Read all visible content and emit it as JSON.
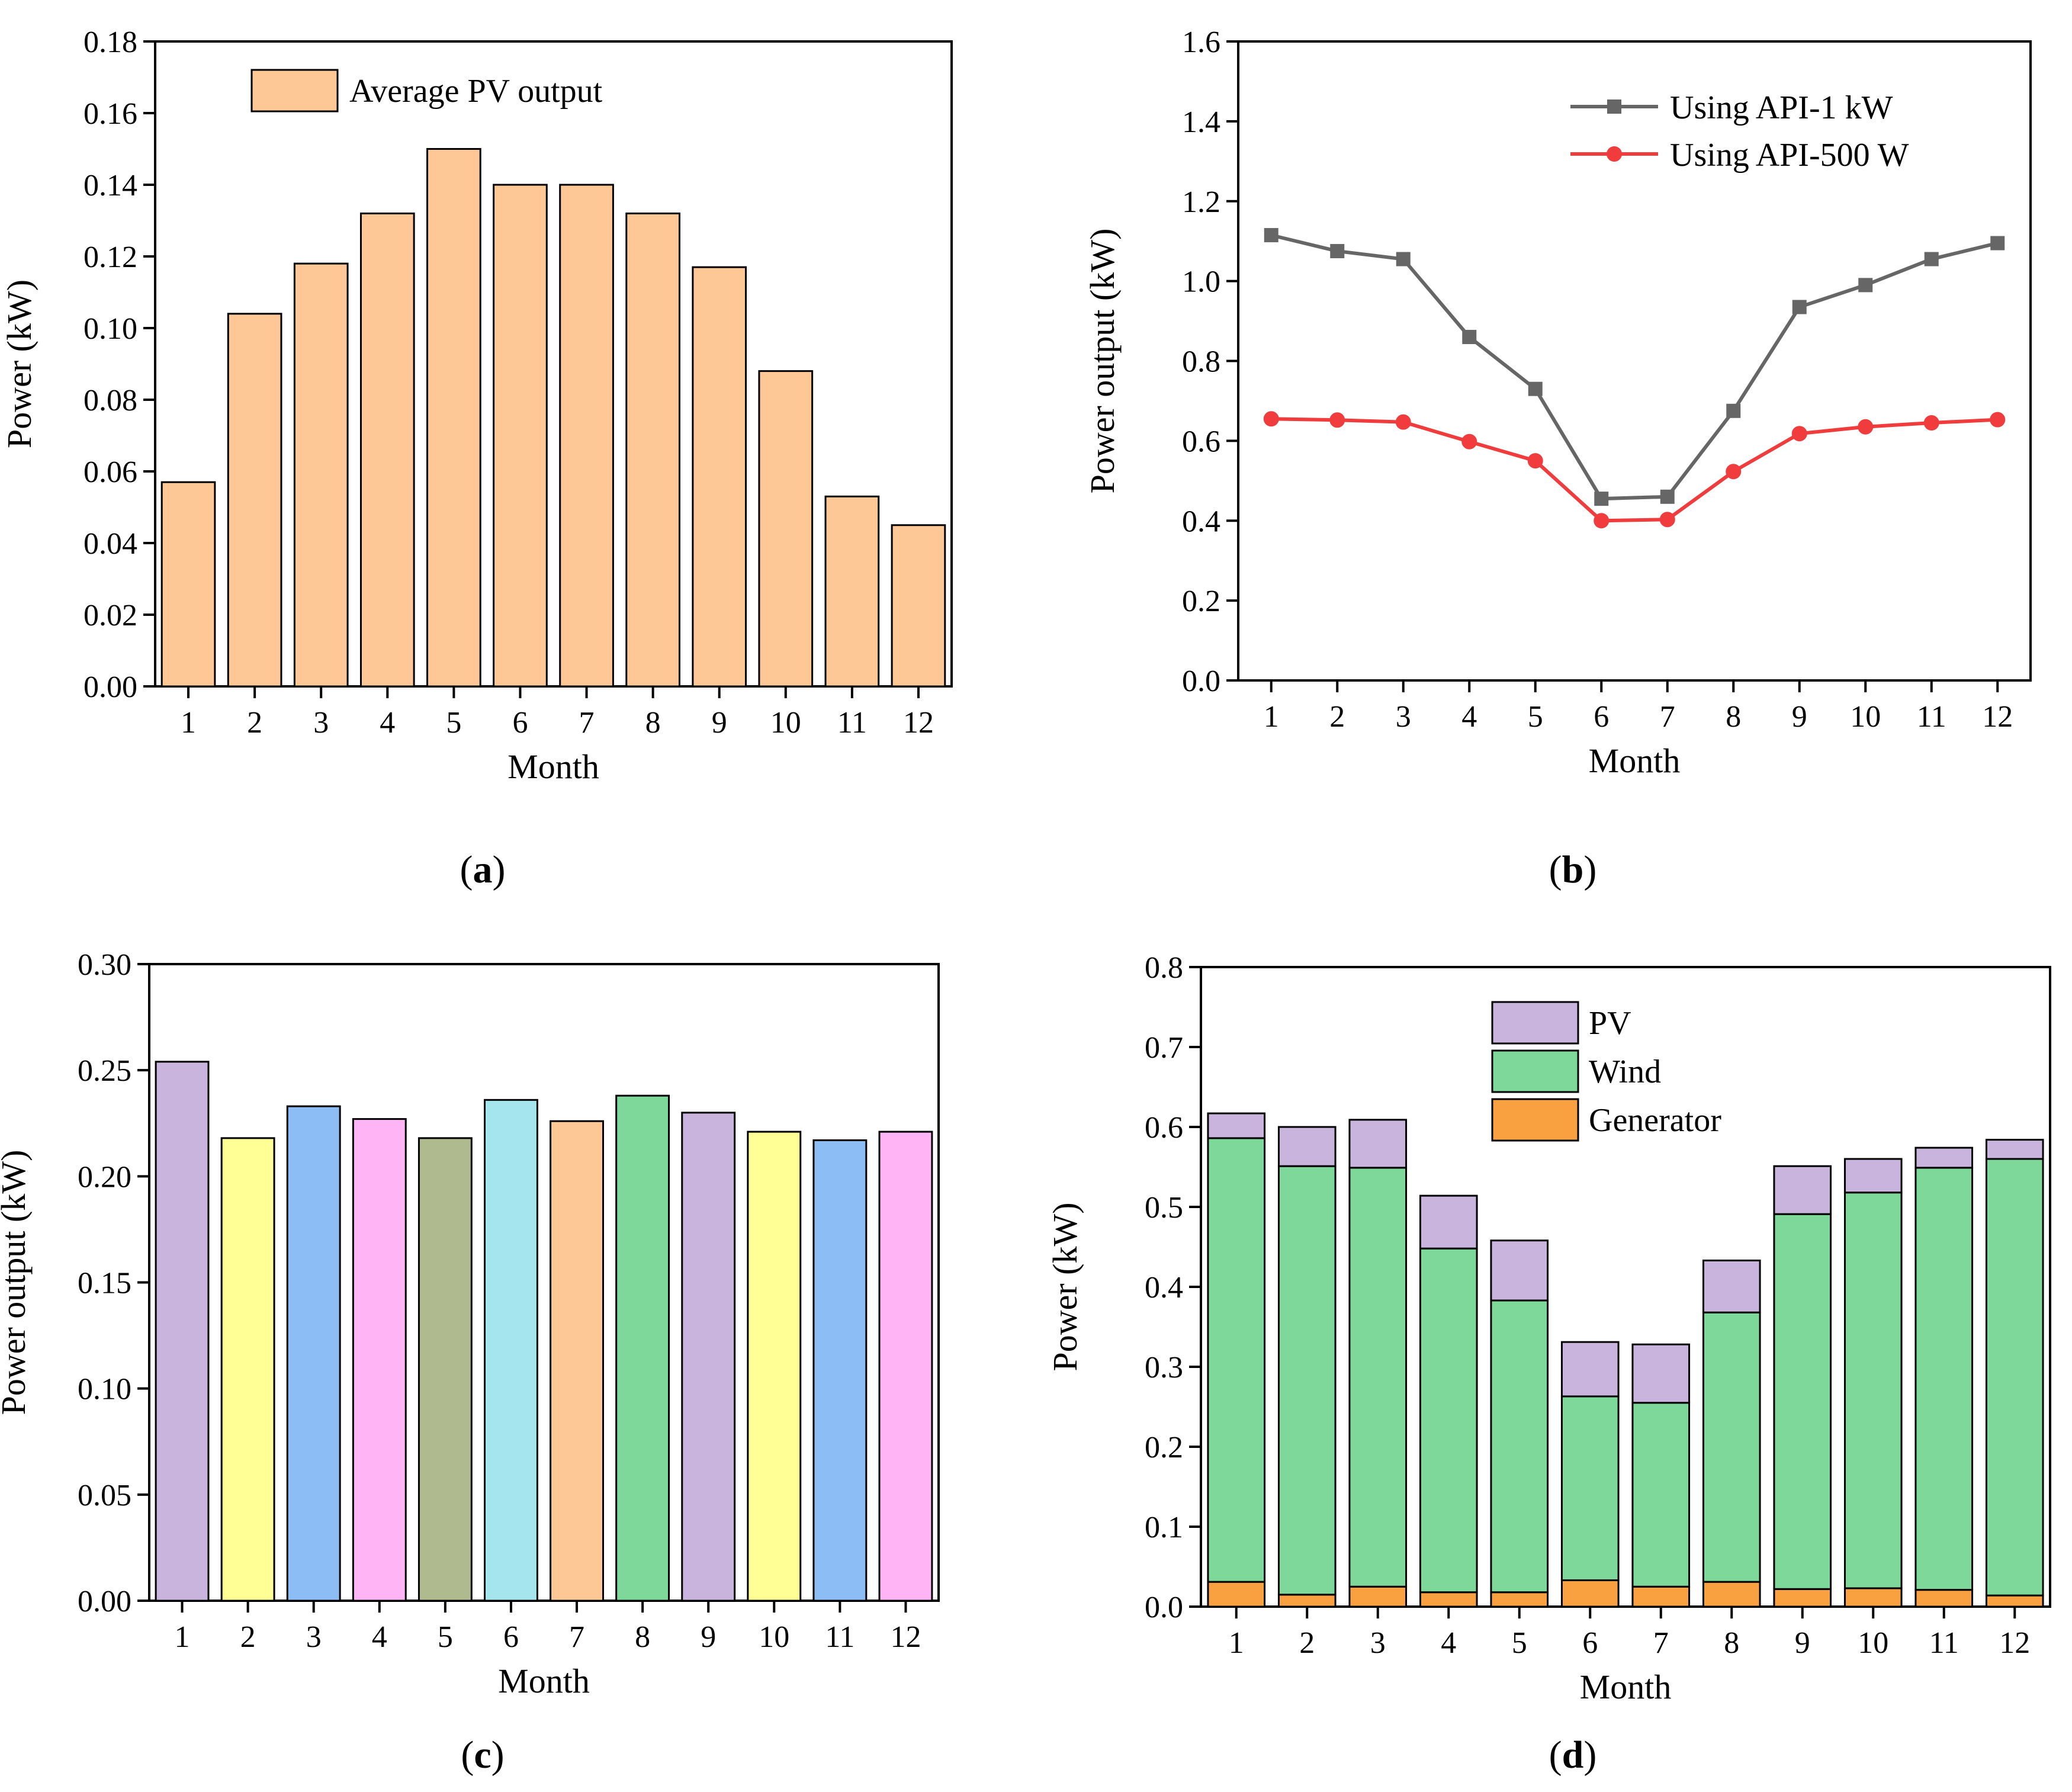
{
  "chart_data": [
    {
      "id": "a",
      "type": "bar",
      "caption_letter": "a",
      "categories": [
        "1",
        "2",
        "3",
        "4",
        "5",
        "6",
        "7",
        "8",
        "9",
        "10",
        "11",
        "12"
      ],
      "values": [
        0.057,
        0.104,
        0.118,
        0.132,
        0.15,
        0.14,
        0.14,
        0.132,
        0.117,
        0.088,
        0.053,
        0.045
      ],
      "series_name": "Average  PV output",
      "color": "#FDC896",
      "xlabel": "Month",
      "ylabel": "Power (kW)",
      "ylim": [
        0,
        0.18
      ],
      "yticks": [
        "0.00",
        "0.02",
        "0.04",
        "0.06",
        "0.08",
        "0.10",
        "0.12",
        "0.14",
        "0.16",
        "0.18"
      ],
      "grid": false,
      "legend": "top-left"
    },
    {
      "id": "b",
      "type": "line",
      "caption_letter": "b",
      "categories": [
        "1",
        "2",
        "3",
        "4",
        "5",
        "6",
        "7",
        "8",
        "9",
        "10",
        "11",
        "12"
      ],
      "series": [
        {
          "name": "Using API-1 kW",
          "marker": "square",
          "color": "#666666",
          "values": [
            1.115,
            1.075,
            1.055,
            0.86,
            0.73,
            0.455,
            0.46,
            0.675,
            0.935,
            0.99,
            1.055,
            1.095
          ]
        },
        {
          "name": "Using API-500 W",
          "marker": "circle",
          "color": "#F03C3C",
          "values": [
            0.655,
            0.652,
            0.647,
            0.598,
            0.55,
            0.4,
            0.403,
            0.523,
            0.618,
            0.635,
            0.645,
            0.653
          ]
        }
      ],
      "xlabel": "Month",
      "ylabel": "Power output (kW)",
      "ylim": [
        0,
        1.6
      ],
      "yticks": [
        "0.0",
        "0.2",
        "0.4",
        "0.6",
        "0.8",
        "1.0",
        "1.2",
        "1.4",
        "1.6"
      ],
      "grid": false,
      "legend": "top-right"
    },
    {
      "id": "c",
      "type": "bar",
      "caption_letter": "c",
      "categories": [
        "1",
        "2",
        "3",
        "4",
        "5",
        "6",
        "7",
        "8",
        "9",
        "10",
        "11",
        "12"
      ],
      "values": [
        0.254,
        0.218,
        0.233,
        0.227,
        0.218,
        0.236,
        0.226,
        0.238,
        0.23,
        0.221,
        0.217,
        0.221
      ],
      "colors": [
        "#C8B4DC",
        "#FFFF96",
        "#8CBEF5",
        "#FFB4F5",
        "#AFBB8F",
        "#A5E6EE",
        "#FDC896",
        "#7DD89A",
        "#C8B4DC",
        "#FFFF96",
        "#8CBEF5",
        "#FFB4F5"
      ],
      "xlabel": "Month",
      "ylabel": "Power output (kW)",
      "ylim": [
        0,
        0.3
      ],
      "yticks": [
        "0.00",
        "0.05",
        "0.10",
        "0.15",
        "0.20",
        "0.25",
        "0.30"
      ],
      "grid": false
    },
    {
      "id": "d",
      "type": "bar",
      "stacked": true,
      "caption_letter": "d",
      "categories": [
        "1",
        "2",
        "3",
        "4",
        "5",
        "6",
        "7",
        "8",
        "9",
        "10",
        "11",
        "12"
      ],
      "series": [
        {
          "name": "Generator",
          "color": "#F9A040",
          "values": [
            0.031,
            0.015,
            0.025,
            0.018,
            0.018,
            0.033,
            0.025,
            0.031,
            0.022,
            0.023,
            0.021,
            0.014
          ]
        },
        {
          "name": "Wind",
          "color": "#7DD89A",
          "values": [
            0.555,
            0.536,
            0.524,
            0.43,
            0.365,
            0.23,
            0.23,
            0.337,
            0.469,
            0.495,
            0.528,
            0.546
          ]
        },
        {
          "name": "PV",
          "color": "#C8B4DC",
          "values": [
            0.031,
            0.049,
            0.06,
            0.066,
            0.075,
            0.068,
            0.073,
            0.065,
            0.06,
            0.042,
            0.025,
            0.024
          ]
        }
      ],
      "legend_order": [
        "PV",
        "Wind",
        "Generator"
      ],
      "xlabel": "Month",
      "ylabel": "Power (kW)",
      "ylim": [
        0,
        0.8
      ],
      "yticks": [
        "0.0",
        "0.1",
        "0.2",
        "0.3",
        "0.4",
        "0.5",
        "0.6",
        "0.7",
        "0.8"
      ],
      "grid": false,
      "legend": "top-center"
    }
  ]
}
